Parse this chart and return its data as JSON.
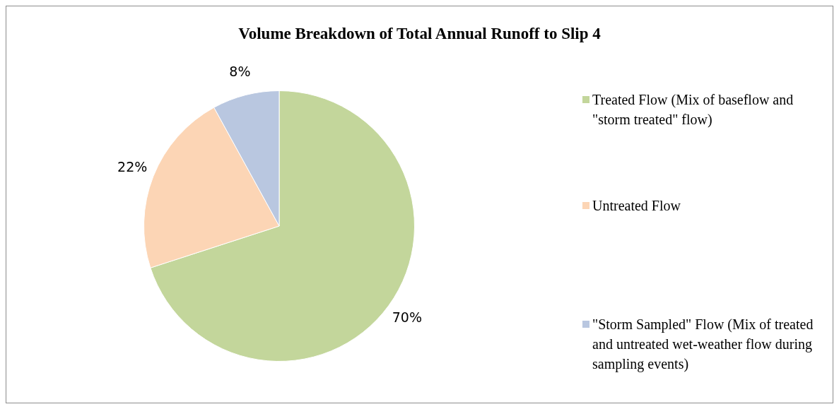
{
  "chart_data": {
    "type": "pie",
    "title": "Volume Breakdown of Total Annual Runoff to Slip 4",
    "categories": [
      "Treated Flow (Mix of baseflow and \"storm treated\" flow)",
      "Untreated Flow",
      "\"Storm Sampled\" Flow (Mix of treated and untreated wet-weather flow during sampling events)"
    ],
    "values": [
      70,
      22,
      8
    ],
    "colors": [
      "#c3d69b",
      "#fcd5b5",
      "#b9c7e0"
    ],
    "value_labels": [
      "70%",
      "22%",
      "8%"
    ],
    "legend": "right"
  }
}
